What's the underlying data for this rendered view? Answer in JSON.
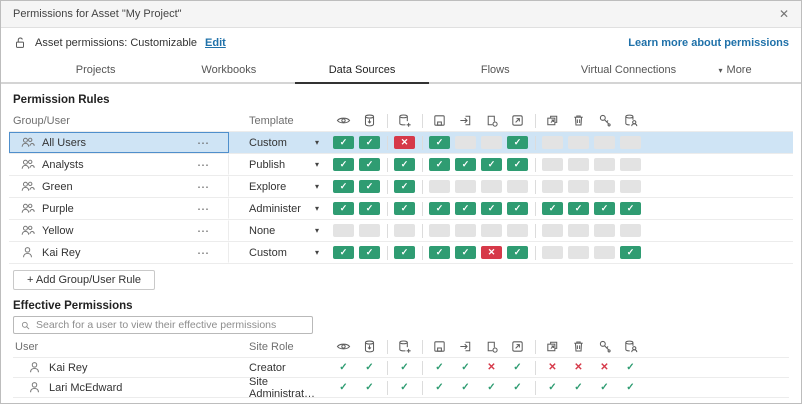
{
  "window": {
    "title": "Permissions for Asset \"My Project\""
  },
  "icons": {
    "close": "✕",
    "caret": "▾",
    "ellipsis": "⋯",
    "check": "✓",
    "cross": "✕"
  },
  "header": {
    "lock_icon": "lock-open-icon",
    "asset_permissions_label": "Asset permissions: Customizable",
    "edit_link": "Edit",
    "learn_more_link": "Learn more about permissions"
  },
  "tabs": {
    "items": [
      {
        "label": "Projects",
        "active": false
      },
      {
        "label": "Workbooks",
        "active": false
      },
      {
        "label": "Data Sources",
        "active": true
      },
      {
        "label": "Flows",
        "active": false
      },
      {
        "label": "Virtual Connections",
        "active": false
      },
      {
        "label": "More",
        "active": false
      }
    ]
  },
  "capabilities": {
    "icons": [
      "view-icon",
      "connect-icon",
      "download-data-source-icon",
      "save-icon",
      "save-as-icon",
      "download-summary-icon",
      "refresh-icon",
      "move-icon",
      "delete-icon",
      "set-permissions-icon",
      "change-owner-icon"
    ],
    "groups": [
      2,
      1,
      4,
      4
    ]
  },
  "rules": {
    "section_title": "Permission Rules",
    "columns": {
      "group_user": "Group/User",
      "template": "Template"
    },
    "rows": [
      {
        "name": "All Users",
        "type": "group",
        "template": "Custom",
        "selected": true,
        "caps": [
          "allow",
          "allow",
          "deny",
          "allow",
          "none",
          "none",
          "allow",
          "none",
          "none",
          "none",
          "none"
        ]
      },
      {
        "name": "Analysts",
        "type": "group",
        "template": "Publish",
        "selected": false,
        "caps": [
          "allow",
          "allow",
          "allow",
          "allow",
          "allow",
          "allow",
          "allow",
          "none",
          "none",
          "none",
          "none"
        ]
      },
      {
        "name": "Green",
        "type": "group",
        "template": "Explore",
        "selected": false,
        "caps": [
          "allow",
          "allow",
          "allow",
          "none",
          "none",
          "none",
          "none",
          "none",
          "none",
          "none",
          "none"
        ]
      },
      {
        "name": "Purple",
        "type": "group",
        "template": "Administer",
        "selected": false,
        "caps": [
          "allow",
          "allow",
          "allow",
          "allow",
          "allow",
          "allow",
          "allow",
          "allow",
          "allow",
          "allow",
          "allow"
        ]
      },
      {
        "name": "Yellow",
        "type": "group",
        "template": "None",
        "selected": false,
        "caps": [
          "none",
          "none",
          "none",
          "none",
          "none",
          "none",
          "none",
          "none",
          "none",
          "none",
          "none"
        ]
      },
      {
        "name": "Kai Rey",
        "type": "user",
        "template": "Custom",
        "selected": false,
        "caps": [
          "allow",
          "allow",
          "allow",
          "allow",
          "allow",
          "deny",
          "allow",
          "none",
          "none",
          "none",
          "allow"
        ]
      }
    ],
    "add_button": "+ Add Group/User Rule"
  },
  "effective": {
    "section_title": "Effective Permissions",
    "search_placeholder": "Search for a user to view their effective permissions",
    "columns": {
      "user": "User",
      "site_role": "Site Role"
    },
    "rows": [
      {
        "name": "Kai Rey",
        "site_role": "Creator",
        "caps": [
          "allow",
          "allow",
          "allow",
          "allow",
          "allow",
          "deny",
          "allow",
          "deny",
          "deny",
          "deny",
          "allow"
        ]
      },
      {
        "name": "Lari McEdward",
        "site_role": "Site Administrat…",
        "caps": [
          "allow",
          "allow",
          "allow",
          "allow",
          "allow",
          "allow",
          "allow",
          "allow",
          "allow",
          "allow",
          "allow"
        ]
      }
    ]
  },
  "colors": {
    "allow": "#2f9c72",
    "deny": "#d63949",
    "empty_cell": "#e3e3e3",
    "link": "#1f71a9",
    "selected_row_bg": "#cfe4f5",
    "selected_row_border": "#4f8fcc"
  }
}
